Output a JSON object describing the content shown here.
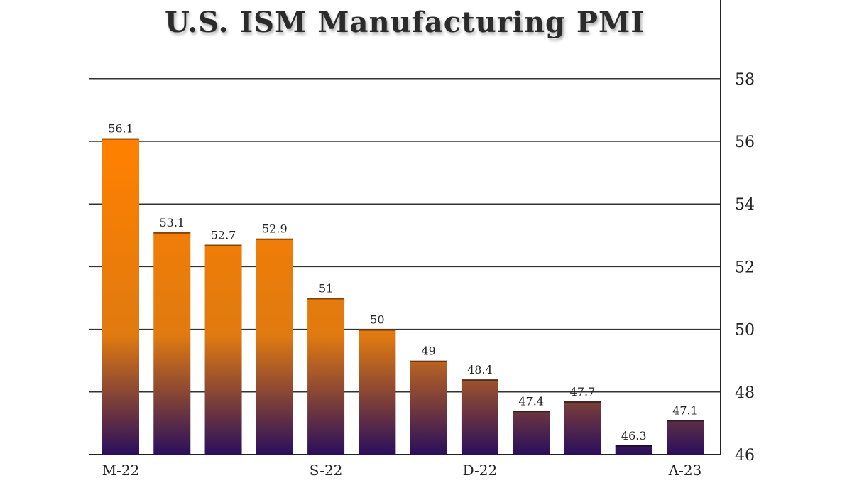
{
  "chart_data": {
    "type": "bar",
    "title": "U.S. ISM Manufacturing PMI",
    "xlabel": "",
    "ylabel": "",
    "categories": [
      "M-22",
      "",
      "",
      "",
      "S-22",
      "",
      "",
      "D-22",
      "",
      "",
      "",
      "A-23"
    ],
    "values": [
      56.1,
      53.1,
      52.7,
      52.9,
      51,
      50,
      49,
      48.4,
      47.4,
      47.7,
      46.3,
      47.1
    ],
    "value_labels": [
      "56.1",
      "53.1",
      "52.7",
      "52.9",
      "51",
      "50",
      "49",
      "48.4",
      "47.4",
      "47.7",
      "46.3",
      "47.1"
    ],
    "ylim": [
      46,
      59.5
    ],
    "yticks": [
      46,
      48,
      50,
      52,
      54,
      56,
      58
    ],
    "y_axis_side": "right",
    "grid": true,
    "legend": "none",
    "colors": {
      "top": "#ff8000",
      "mid": "#e07a10",
      "bottom": "#2a0f5c"
    }
  }
}
